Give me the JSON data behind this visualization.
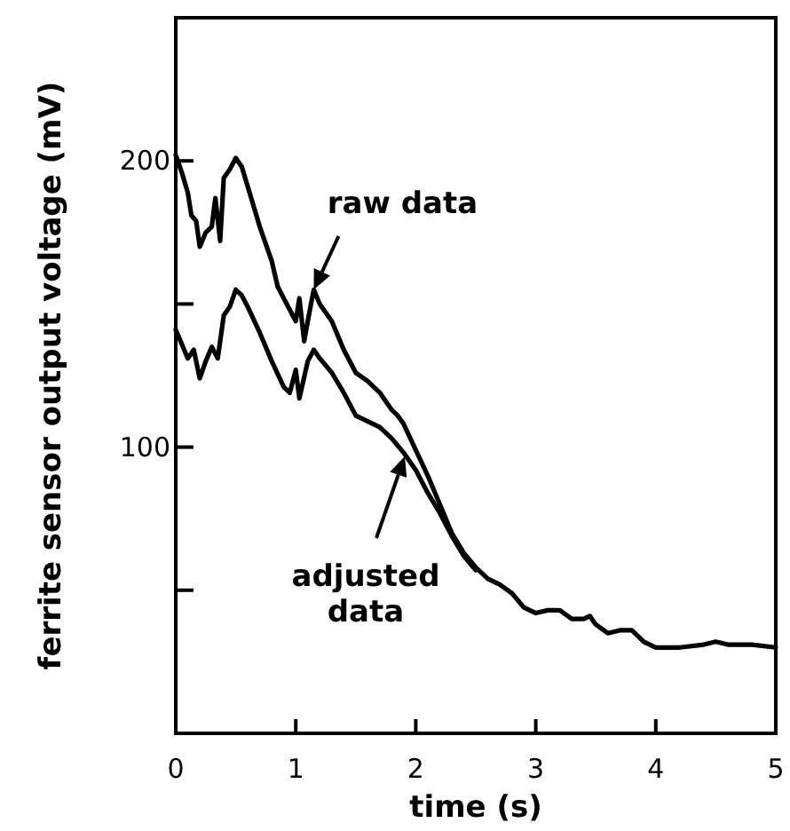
{
  "chart_data": {
    "type": "line",
    "xlabel": "time (s)",
    "ylabel": "ferrite sensor output voltage (mV)",
    "xlim": [
      0,
      5
    ],
    "xticks": [
      0,
      1,
      2,
      3,
      4,
      5
    ],
    "ylim": [
      0,
      250
    ],
    "yticks": [
      {
        "value": 50,
        "label": null
      },
      100,
      {
        "value": 150,
        "label": null
      },
      200
    ],
    "grid": false,
    "line_style": "solid",
    "marker": "none",
    "annotations": [
      {
        "text": "raw data",
        "x": 1.15,
        "y": 155
      },
      "adjusted data"
    ],
    "series": [
      {
        "color": "#000000",
        "x": [
          0,
          0.05,
          0.1,
          0.13,
          0.17,
          0.2,
          0.25,
          0.3,
          0.33,
          0.37,
          0.4,
          0.45,
          0.5,
          0.55,
          0.6,
          0.7,
          0.8,
          0.85,
          0.9,
          1.0,
          1.03,
          1.07,
          1.1,
          1.15,
          1.2,
          1.3,
          1.4,
          1.5,
          1.6,
          1.7,
          1.8,
          1.85,
          1.9,
          2.0,
          2.1,
          2.2,
          2.3,
          2.4,
          2.5,
          2.6,
          2.7,
          2.8,
          2.9,
          3.0,
          3.1,
          3.2,
          3.3,
          3.4,
          3.45,
          3.5,
          3.6,
          3.7,
          3.8,
          3.9,
          4.0,
          4.2,
          4.4,
          4.5,
          4.6,
          4.8,
          5.0
        ],
        "values": [
          202,
          196,
          189,
          181,
          179,
          170,
          175,
          177,
          187,
          172,
          194,
          197,
          201,
          198,
          191,
          177,
          165,
          156,
          152,
          144,
          152,
          137,
          144,
          155,
          150,
          144,
          134,
          126,
          123,
          119,
          113,
          111,
          108,
          99,
          90,
          80,
          70,
          63,
          58,
          54,
          52,
          49,
          44,
          42,
          43,
          43,
          40,
          40,
          41,
          38,
          35,
          36,
          36,
          32,
          30,
          30,
          31,
          32,
          31,
          31,
          30
        ]
      },
      {
        "color": "#000000",
        "x": [
          0,
          0.05,
          0.1,
          0.15,
          0.2,
          0.25,
          0.3,
          0.35,
          0.4,
          0.45,
          0.5,
          0.55,
          0.6,
          0.7,
          0.8,
          0.9,
          0.95,
          1.0,
          1.03,
          1.1,
          1.15,
          1.2,
          1.3,
          1.4,
          1.5,
          1.6,
          1.7,
          1.8,
          1.9,
          2.0,
          2.1,
          2.2,
          2.3,
          2.4,
          2.5
        ],
        "values": [
          141,
          136,
          131,
          134,
          124,
          130,
          135,
          131,
          146,
          149,
          155,
          153,
          149,
          140,
          130,
          121,
          119,
          127,
          117,
          130,
          134,
          131,
          126,
          119,
          111,
          109,
          107,
          103,
          98,
          92,
          84,
          77,
          69,
          62,
          57
        ]
      }
    ]
  }
}
